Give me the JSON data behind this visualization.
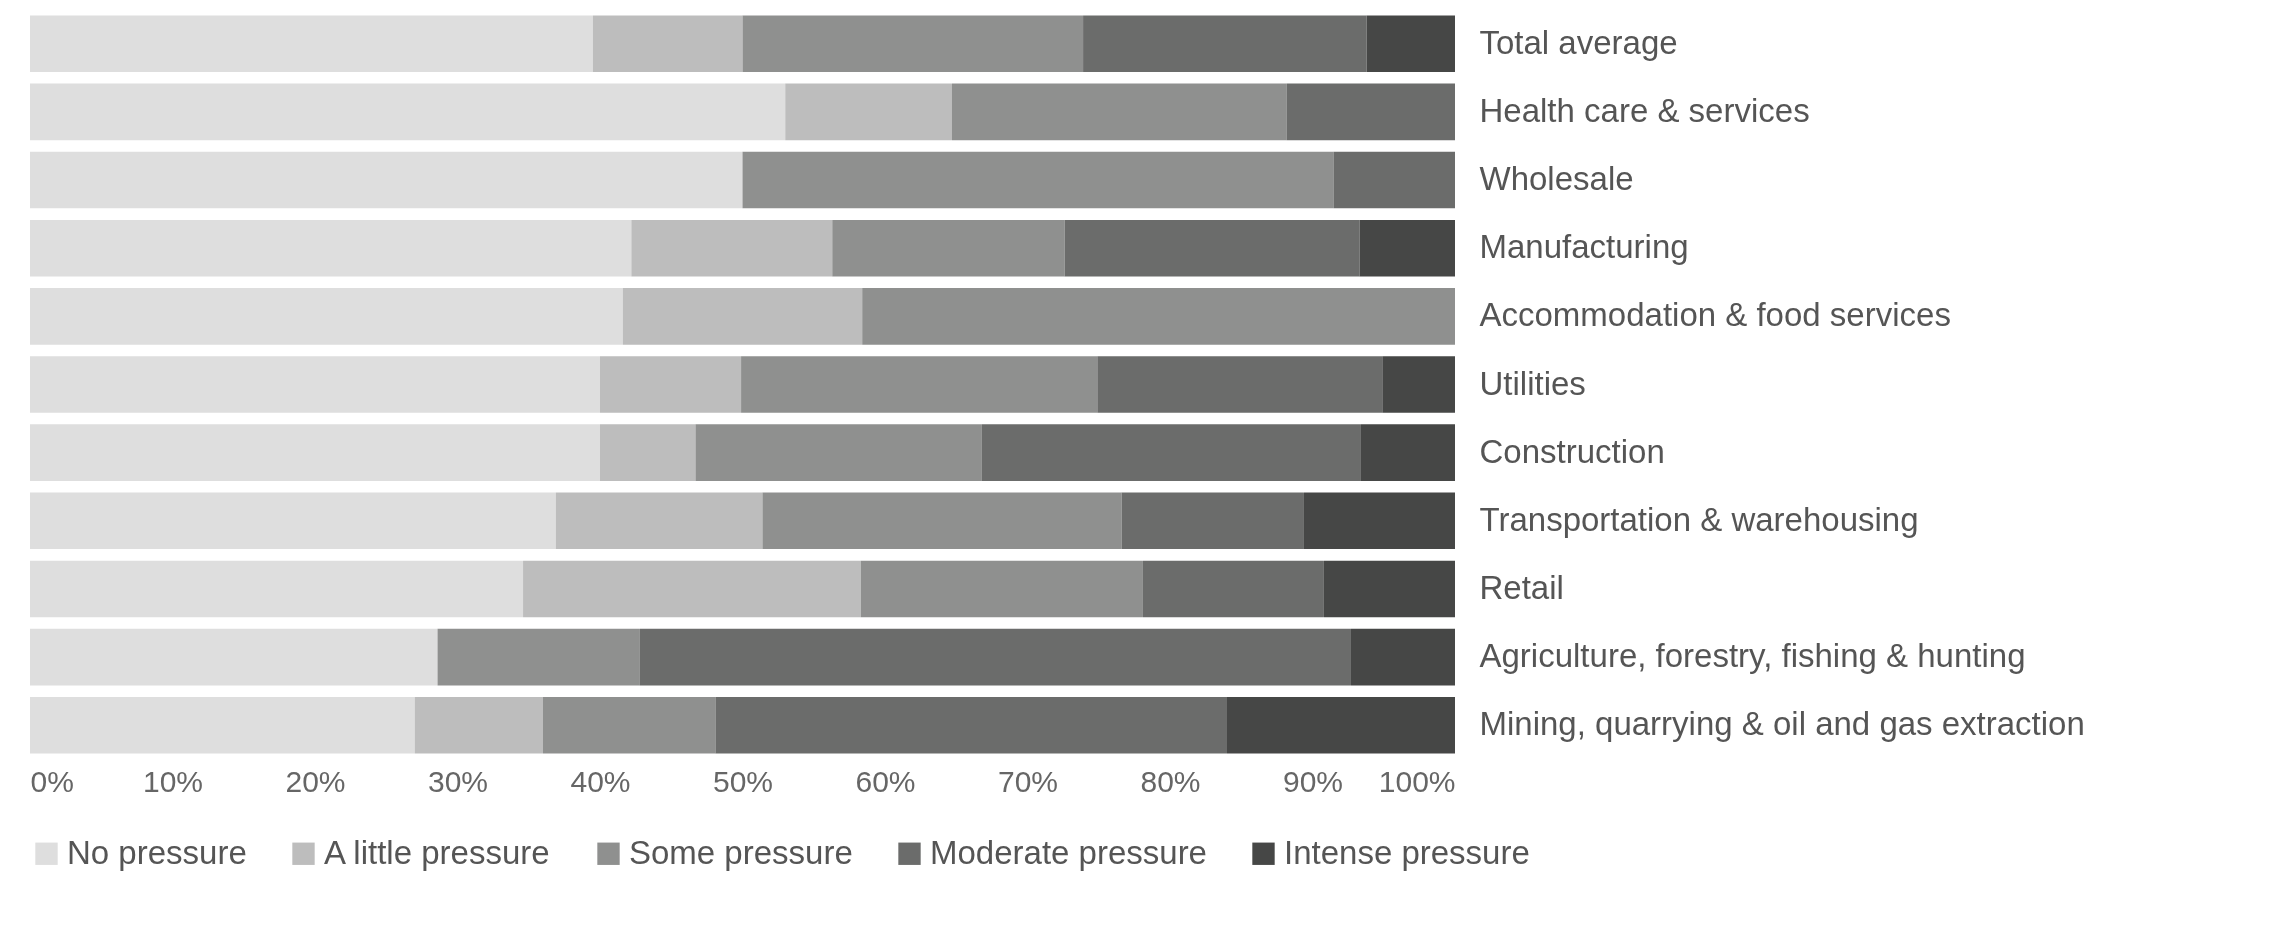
{
  "chart_data": {
    "type": "bar",
    "orientation": "horizontal",
    "stacked": true,
    "categories": [
      "Total average",
      "Health care & services",
      "Wholesale",
      "Manufacturing",
      "Accommodation & food services",
      "Utilities",
      "Construction",
      "Transportation & warehousing",
      "Retail",
      "Agriculture, forestry, fishing & hunting",
      "Mining, quarrying & oil and gas extraction"
    ],
    "series": [
      {
        "name": "No pressure",
        "color": "#dedede",
        "values": [
          39.5,
          53.0,
          50.0,
          42.2,
          41.6,
          40.0,
          40.0,
          36.9,
          34.6,
          28.6,
          27.0
        ]
      },
      {
        "name": "A little pressure",
        "color": "#bdbdbd",
        "values": [
          10.5,
          11.7,
          0,
          14.1,
          16.8,
          9.9,
          6.7,
          14.5,
          23.7,
          0,
          9.0
        ]
      },
      {
        "name": "Some pressure",
        "color": "#8f908f",
        "values": [
          23.9,
          23.5,
          41.5,
          16.3,
          41.6,
          25.0,
          20.1,
          25.2,
          19.8,
          14.2,
          12.1
        ]
      },
      {
        "name": "Moderate pressure",
        "color": "#6b6c6b",
        "values": [
          19.9,
          11.8,
          8.5,
          20.7,
          0,
          20.0,
          26.6,
          12.8,
          12.7,
          49.9,
          35.9
        ]
      },
      {
        "name": "Intense pressure",
        "color": "#464746",
        "values": [
          6.2,
          0,
          0,
          6.7,
          0,
          5.1,
          6.6,
          10.6,
          9.2,
          7.3,
          16.0
        ]
      }
    ],
    "xlim": [
      0,
      100
    ],
    "xticks": [
      {
        "value": 0,
        "label": "0%"
      },
      {
        "value": 10,
        "label": "10%"
      },
      {
        "value": 20,
        "label": "20%"
      },
      {
        "value": 30,
        "label": "30%"
      },
      {
        "value": 40,
        "label": "40%"
      },
      {
        "value": 50,
        "label": "50%"
      },
      {
        "value": 60,
        "label": "60%"
      },
      {
        "value": 70,
        "label": "70%"
      },
      {
        "value": 80,
        "label": "80%"
      },
      {
        "value": 90,
        "label": "90%"
      },
      {
        "value": 100,
        "label": "100%"
      }
    ],
    "grid": false,
    "legend": "bottom"
  }
}
